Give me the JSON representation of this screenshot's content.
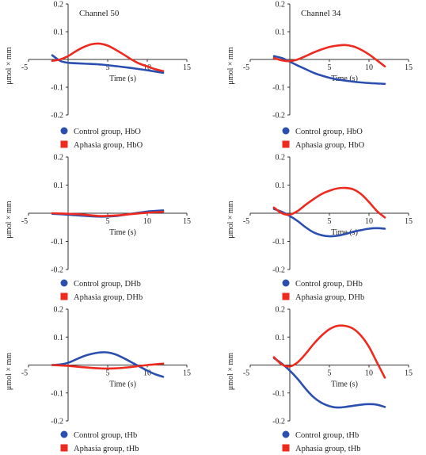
{
  "colors": {
    "control": "#2b4fb0",
    "aphasia": "#ee2a1e",
    "axis": "#333333"
  },
  "chart_data": [
    {
      "type": "line",
      "title": "Channel 50",
      "xlabel": "Time (s)",
      "ylabel": "μmol × mm",
      "xlim": [
        -5,
        15
      ],
      "ylim": [
        -0.2,
        0.2
      ],
      "xticks": [
        "-5",
        "5",
        "10",
        "15"
      ],
      "yticks": [
        "0.2",
        "0.1",
        "-0.1",
        "-0.2"
      ],
      "series": [
        {
          "name": "Control group, HbO",
          "x": [
            -2,
            -1,
            0,
            2,
            4,
            6,
            8,
            10,
            12
          ],
          "y": [
            0.015,
            -0.005,
            -0.012,
            -0.015,
            -0.018,
            -0.024,
            -0.031,
            -0.039,
            -0.048
          ]
        },
        {
          "name": "Aphasia group, HbO",
          "x": [
            -2,
            -1,
            0,
            1,
            2,
            3,
            4,
            5,
            6,
            7,
            8,
            9,
            10,
            11,
            12
          ],
          "y": [
            -0.005,
            0.0,
            0.012,
            0.03,
            0.045,
            0.055,
            0.057,
            0.05,
            0.035,
            0.018,
            0.0,
            -0.015,
            -0.025,
            -0.035,
            -0.042
          ]
        }
      ],
      "legend": [
        "Control group, HbO",
        "Aphasia group, HbO"
      ]
    },
    {
      "type": "line",
      "title": "Channel 34",
      "xlabel": "Time (s)",
      "ylabel": "μmol × mm",
      "xlim": [
        -5,
        15
      ],
      "ylim": [
        -0.2,
        0.2
      ],
      "xticks": [
        "-5",
        "5",
        "10",
        "15"
      ],
      "yticks": [
        "0.2",
        "0.1",
        "-0.1",
        "-0.2"
      ],
      "series": [
        {
          "name": "Control group, HbO",
          "x": [
            -2,
            -1,
            0,
            1,
            2,
            3,
            4,
            5,
            6,
            8,
            10,
            12
          ],
          "y": [
            0.012,
            0.005,
            -0.008,
            -0.022,
            -0.035,
            -0.048,
            -0.058,
            -0.066,
            -0.072,
            -0.08,
            -0.085,
            -0.088
          ]
        },
        {
          "name": "Aphasia group, HbO",
          "x": [
            -2,
            -1,
            0,
            1,
            2,
            3,
            4,
            5,
            6,
            7,
            8,
            9,
            10,
            11,
            12
          ],
          "y": [
            0.005,
            -0.003,
            -0.006,
            0.0,
            0.012,
            0.025,
            0.036,
            0.045,
            0.05,
            0.052,
            0.047,
            0.035,
            0.018,
            -0.003,
            -0.025
          ]
        }
      ],
      "legend": [
        "Control group, HbO",
        "Aphasia group, HbO"
      ]
    },
    {
      "type": "line",
      "title": "",
      "xlabel": "Time (s)",
      "ylabel": "μmol × mm",
      "xlim": [
        -5,
        15
      ],
      "ylim": [
        -0.2,
        0.2
      ],
      "xticks": [
        "-5",
        "5",
        "10",
        "15"
      ],
      "yticks": [
        "0.2",
        "0.1",
        "-0.1",
        "-0.2"
      ],
      "series": [
        {
          "name": "Control group, DHb",
          "x": [
            -2,
            0,
            2,
            4,
            6,
            8,
            10,
            12
          ],
          "y": [
            -0.002,
            -0.005,
            -0.009,
            -0.012,
            -0.01,
            -0.002,
            0.006,
            0.01
          ]
        },
        {
          "name": "Aphasia group, DHb",
          "x": [
            -2,
            0,
            2,
            4,
            6,
            8,
            10,
            12
          ],
          "y": [
            0.0,
            -0.002,
            -0.005,
            -0.01,
            -0.008,
            -0.003,
            0.002,
            0.005
          ]
        }
      ],
      "legend": [
        "Control group, DHb",
        "Aphasia group, DHb"
      ]
    },
    {
      "type": "line",
      "title": "",
      "xlabel": "Time (s)",
      "ylabel": "μmol × mm",
      "xlim": [
        -5,
        15
      ],
      "ylim": [
        -0.2,
        0.2
      ],
      "xticks": [
        "-5",
        "5",
        "10",
        "15"
      ],
      "yticks": [
        "0.2",
        "0.1",
        "-0.1",
        "-0.2"
      ],
      "series": [
        {
          "name": "Control group, DHb",
          "x": [
            -2,
            -1,
            0,
            1,
            2,
            3,
            4,
            5,
            6,
            7,
            8,
            9,
            10,
            11,
            12
          ],
          "y": [
            0.015,
            0.005,
            -0.01,
            -0.028,
            -0.05,
            -0.068,
            -0.078,
            -0.082,
            -0.08,
            -0.074,
            -0.066,
            -0.06,
            -0.055,
            -0.053,
            -0.055
          ]
        },
        {
          "name": "Aphasia group, DHb",
          "x": [
            -2,
            -1,
            0,
            1,
            2,
            3,
            4,
            5,
            6,
            7,
            8,
            9,
            10,
            11,
            12
          ],
          "y": [
            0.02,
            0.0,
            -0.005,
            0.008,
            0.03,
            0.05,
            0.068,
            0.08,
            0.088,
            0.09,
            0.085,
            0.068,
            0.04,
            0.008,
            -0.015
          ]
        }
      ],
      "legend": [
        "Control group, DHb",
        "Aphasia group, DHb"
      ]
    },
    {
      "type": "line",
      "title": "",
      "xlabel": "Time (s)",
      "ylabel": "μmol × mm",
      "xlim": [
        -5,
        15
      ],
      "ylim": [
        -0.2,
        0.2
      ],
      "xticks": [
        "-5",
        "5",
        "10",
        "15"
      ],
      "yticks": [
        "0.2",
        "0.1",
        "-0.1",
        "-0.2"
      ],
      "series": [
        {
          "name": "Control group, tHb",
          "x": [
            -2,
            -1,
            0,
            1,
            2,
            3,
            4,
            5,
            6,
            7,
            8,
            9,
            10,
            11,
            12
          ],
          "y": [
            0.0,
            0.002,
            0.008,
            0.02,
            0.032,
            0.04,
            0.045,
            0.045,
            0.038,
            0.025,
            0.01,
            -0.005,
            -0.02,
            -0.033,
            -0.042
          ]
        },
        {
          "name": "Aphasia group, tHb",
          "x": [
            -2,
            0,
            2,
            4,
            6,
            8,
            10,
            12
          ],
          "y": [
            0.0,
            -0.003,
            -0.008,
            -0.012,
            -0.012,
            -0.007,
            0.0,
            0.005
          ]
        }
      ],
      "legend": [
        "Control group, tHb",
        "Aphasia group, tHb"
      ]
    },
    {
      "type": "line",
      "title": "",
      "xlabel": "Time (s)",
      "ylabel": "μmol × mm",
      "xlim": [
        -5,
        15
      ],
      "ylim": [
        -0.2,
        0.2
      ],
      "xticks": [
        "-5",
        "5",
        "10",
        "15"
      ],
      "yticks": [
        "0.2",
        "0.1",
        "-0.1",
        "-0.2"
      ],
      "series": [
        {
          "name": "Control group, tHb",
          "x": [
            -2,
            -1,
            0,
            1,
            2,
            3,
            4,
            5,
            6,
            7,
            8,
            9,
            10,
            11,
            12
          ],
          "y": [
            0.025,
            0.005,
            -0.02,
            -0.05,
            -0.085,
            -0.115,
            -0.135,
            -0.147,
            -0.152,
            -0.15,
            -0.146,
            -0.142,
            -0.14,
            -0.142,
            -0.15
          ]
        },
        {
          "name": "Aphasia group, tHb",
          "x": [
            -2,
            -1,
            0,
            1,
            2,
            3,
            4,
            5,
            6,
            7,
            8,
            9,
            10,
            11,
            12
          ],
          "y": [
            0.028,
            0.002,
            -0.005,
            0.01,
            0.04,
            0.075,
            0.105,
            0.128,
            0.14,
            0.14,
            0.13,
            0.105,
            0.065,
            0.01,
            -0.045
          ]
        }
      ],
      "legend": [
        "Control group, tHb",
        "Aphasia group, tHb"
      ]
    }
  ]
}
